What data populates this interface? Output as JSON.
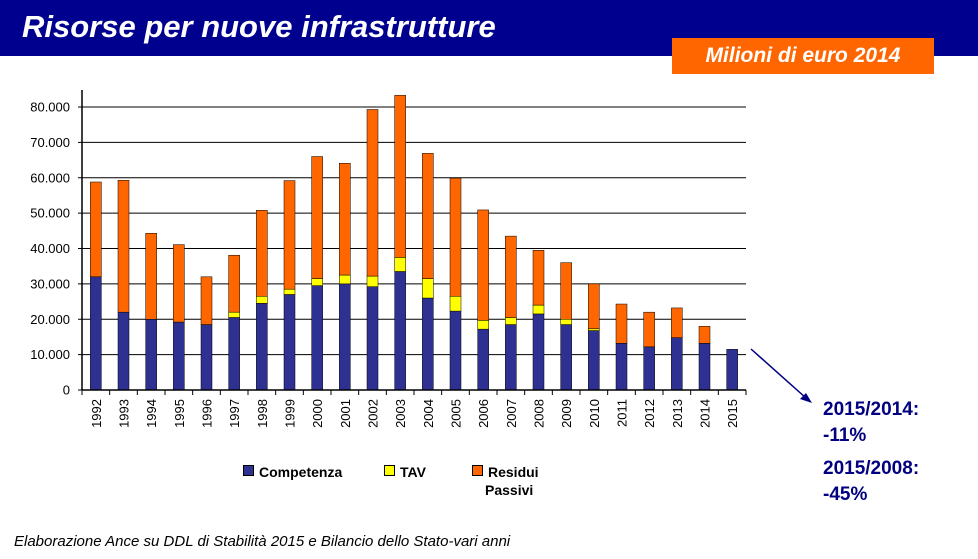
{
  "header": {
    "title": "Risorse per nuove infrastrutture",
    "unit_badge": "Milioni di euro 2014"
  },
  "chart_data": {
    "type": "bar",
    "stacked": true,
    "categories": [
      "1992",
      "1993",
      "1994",
      "1995",
      "1996",
      "1997",
      "1998",
      "1999",
      "2000",
      "2001",
      "2002",
      "2003",
      "2004",
      "2005",
      "2006",
      "2007",
      "2008",
      "2009",
      "2010",
      "2011",
      "2012",
      "2013",
      "2014",
      "2015"
    ],
    "series": [
      {
        "name": "Competenza",
        "color": "#2e3192",
        "values": [
          32000,
          22000,
          20000,
          19200,
          18500,
          20500,
          24500,
          27000,
          29500,
          30000,
          29200,
          33500,
          26000,
          22300,
          17200,
          18500,
          21500,
          18500,
          16800,
          13200,
          12200,
          14800,
          13200,
          11500
        ]
      },
      {
        "name": "TAV",
        "color": "#ffff00",
        "values": [
          0,
          0,
          0,
          0,
          0,
          1500,
          2000,
          1500,
          2000,
          2500,
          3000,
          4000,
          5500,
          4200,
          2500,
          2000,
          2500,
          1500,
          500,
          0,
          0,
          0,
          0,
          0
        ]
      },
      {
        "name": "Residui Passivi",
        "color": "#ff6600",
        "values": [
          26800,
          37300,
          24300,
          21900,
          13500,
          16100,
          24300,
          30700,
          34500,
          31600,
          47100,
          45800,
          35400,
          33400,
          31200,
          23000,
          15500,
          16000,
          12700,
          11100,
          9800,
          8400,
          4800,
          0
        ]
      }
    ],
    "yticks": [
      "0",
      "10.000",
      "20.000",
      "30.000",
      "40.000",
      "50.000",
      "60.000",
      "70.000",
      "80.000"
    ],
    "ylim": [
      0,
      85000
    ],
    "grid": true,
    "legend_position": "bottom-center",
    "legend": {
      "competenza": "Competenza",
      "tav": "TAV",
      "residui_line1": "Residui",
      "residui_line2": "Passivi"
    }
  },
  "notes": {
    "note1_label": "2015/2014:",
    "note1_value": "-11%",
    "note2_label": "2015/2008:",
    "note2_value": "-45%",
    "arrow_color": "#000080"
  },
  "footer": {
    "source": "Elaborazione Ance su DDL di Stabilità 2015 e Bilancio dello Stato-vari anni"
  }
}
